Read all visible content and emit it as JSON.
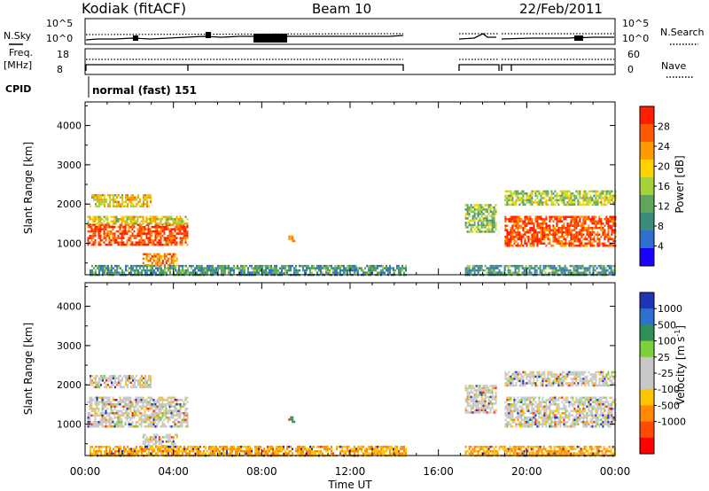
{
  "header": {
    "station": "Kodiak (fitACF)",
    "beam": "Beam 10",
    "date": "22/Feb/2011"
  },
  "top_panels": {
    "nsky_label": "N.Sky",
    "nsky_ticks": [
      "10^5",
      "10^0"
    ],
    "nsearch_label": "N.Search",
    "nsearch_ticks": [
      "10^5",
      "10^0"
    ],
    "freq_label_1": "Freq.",
    "freq_label_2": "[MHz]",
    "freq_ticks": [
      "18",
      "8"
    ],
    "nave_label": "Nave",
    "nave_ticks": [
      "60",
      "0"
    ],
    "cpid_label": "CPID",
    "cpid_value": "normal (fast) 151"
  },
  "colors": {
    "power_scale": [
      "#1a00ff",
      "#2f6fd0",
      "#3a8d7a",
      "#5fa65a",
      "#a6d23c",
      "#ffd200",
      "#ff9a00",
      "#ff5a00",
      "#ff1e00"
    ],
    "velocity_scale": [
      "#1f35b5",
      "#2f6fd0",
      "#2f8f56",
      "#7dd13a",
      "#c8c8c8",
      "#c8c8c8",
      "#ffc400",
      "#ff8a00",
      "#ff4a00",
      "#ff0000"
    ]
  },
  "chart_data": [
    {
      "type": "heatmap",
      "name": "power-panel",
      "ylabel": "Slant Range [km]",
      "yticks": [
        "1000",
        "2000",
        "3000",
        "4000"
      ],
      "ylim": [
        200,
        4600
      ],
      "xlim": [
        0,
        24
      ],
      "colorbar": {
        "label": "Power [dB]",
        "ticks": [
          "4",
          "8",
          "12",
          "16",
          "20",
          "24",
          "28"
        ],
        "range": [
          0,
          32
        ]
      },
      "echo_bands": [
        {
          "t_start": 0.1,
          "t_end": 4.6,
          "r_min": 950,
          "r_max": 1500,
          "value": 28
        },
        {
          "t_start": 0.1,
          "t_end": 4.6,
          "r_min": 1500,
          "r_max": 1700,
          "value": 18
        },
        {
          "t_start": 0.2,
          "t_end": 3.0,
          "r_min": 1950,
          "r_max": 2250,
          "value": 20
        },
        {
          "t_start": 2.6,
          "t_end": 4.2,
          "r_min": 450,
          "r_max": 750,
          "value": 24
        },
        {
          "t_start": 0.2,
          "t_end": 14.5,
          "r_min": 200,
          "r_max": 450,
          "value": 10
        },
        {
          "t_start": 9.2,
          "t_end": 9.5,
          "r_min": 1050,
          "r_max": 1200,
          "value": 24
        },
        {
          "t_start": 17.2,
          "t_end": 18.6,
          "r_min": 1300,
          "r_max": 2000,
          "value": 14
        },
        {
          "t_start": 19.0,
          "t_end": 24.0,
          "r_min": 950,
          "r_max": 1700,
          "value": 28
        },
        {
          "t_start": 19.0,
          "t_end": 24.0,
          "r_min": 2000,
          "r_max": 2350,
          "value": 16
        },
        {
          "t_start": 17.2,
          "t_end": 24.0,
          "r_min": 200,
          "r_max": 450,
          "value": 10
        }
      ]
    },
    {
      "type": "heatmap",
      "name": "velocity-panel",
      "ylabel": "Slant Range [km]",
      "xlabel": "Time UT",
      "xticks": [
        "00:00",
        "04:00",
        "08:00",
        "12:00",
        "16:00",
        "20:00",
        "00:00"
      ],
      "yticks": [
        "1000",
        "2000",
        "3000",
        "4000"
      ],
      "ylim": [
        200,
        4600
      ],
      "xlim": [
        0,
        24
      ],
      "colorbar": {
        "label": "Velocity [m s",
        "label_sup": "-1",
        "label_end": "]",
        "ticks": [
          "1000",
          "500",
          "100",
          "25",
          "-25",
          "-100",
          "-500",
          "-1000"
        ]
      },
      "echo_bands": [
        {
          "t_start": 0.1,
          "t_end": 4.6,
          "r_min": 950,
          "r_max": 1700,
          "value": 0
        },
        {
          "t_start": 0.2,
          "t_end": 3.0,
          "r_min": 1950,
          "r_max": 2250,
          "value": 0
        },
        {
          "t_start": 2.6,
          "t_end": 4.2,
          "r_min": 450,
          "r_max": 750,
          "value": 0
        },
        {
          "t_start": 0.2,
          "t_end": 14.5,
          "r_min": 200,
          "r_max": 450,
          "value": -100
        },
        {
          "t_start": 9.2,
          "t_end": 9.5,
          "r_min": 1050,
          "r_max": 1200,
          "value": 100
        },
        {
          "t_start": 17.2,
          "t_end": 18.6,
          "r_min": 1300,
          "r_max": 2000,
          "value": 0
        },
        {
          "t_start": 19.0,
          "t_end": 24.0,
          "r_min": 950,
          "r_max": 1700,
          "value": 0
        },
        {
          "t_start": 19.0,
          "t_end": 24.0,
          "r_min": 2000,
          "r_max": 2350,
          "value": 0
        },
        {
          "t_start": 17.2,
          "t_end": 24.0,
          "r_min": 200,
          "r_max": 450,
          "value": -100
        }
      ]
    }
  ]
}
